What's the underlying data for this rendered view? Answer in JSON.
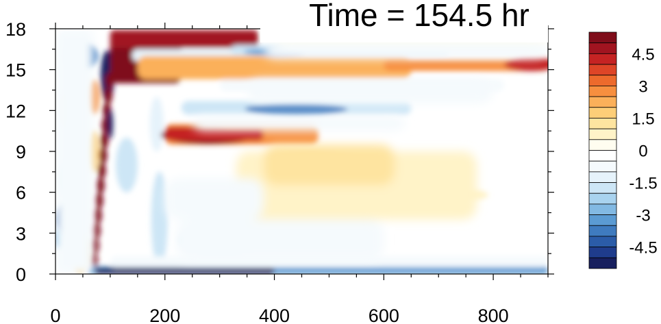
{
  "chart_data": {
    "type": "heatmap",
    "title": "Time = 154.5 hr",
    "xlabel": "",
    "ylabel": "",
    "xlim": [
      0,
      900
    ],
    "ylim": [
      0,
      18
    ],
    "x_ticks": [
      0,
      200,
      400,
      600,
      800
    ],
    "y_ticks": [
      0,
      3,
      6,
      9,
      12,
      15,
      18
    ],
    "x_tick_labels": [
      "0",
      "200",
      "400",
      "600",
      "800"
    ],
    "y_tick_labels": [
      "0",
      "3",
      "6",
      "9",
      "12",
      "15",
      "18"
    ],
    "colorbar": {
      "placement": "right",
      "levels": [
        -5.5,
        -5,
        -4.5,
        -4,
        -3.5,
        -3,
        -2.5,
        -2,
        -1.5,
        -1,
        -0.5,
        0,
        0.5,
        1,
        1.5,
        2,
        2.5,
        3,
        3.5,
        4,
        4.5,
        5,
        5.5
      ],
      "labels": [
        "4.5",
        "3",
        "1.5",
        "0",
        "-1.5",
        "-3",
        "-4.5"
      ],
      "label_values": [
        4.5,
        3,
        1.5,
        0,
        -1.5,
        -3,
        -4.5
      ],
      "colors": [
        "#171f5e",
        "#1f3c8c",
        "#2b5ca8",
        "#3f7bbf",
        "#5b9bd3",
        "#82b9e3",
        "#a9d3ef",
        "#cde6f6",
        "#e6f3fb",
        "#f5fafd",
        "#ffffff",
        "#fffdf0",
        "#fff3c8",
        "#fee4a0",
        "#fdce78",
        "#fbb05a",
        "#f78f3f",
        "#ed6a2c",
        "#de4527",
        "#c52323",
        "#a11420",
        "#7f0d1a"
      ]
    },
    "features": [
      {
        "kind": "positive",
        "x_range": [
          100,
          230
        ],
        "y_range": [
          14,
          17
        ],
        "value": 5.5
      },
      {
        "kind": "positive",
        "x_range": [
          150,
          650
        ],
        "y_range": [
          14.8,
          15.6
        ],
        "value": 4
      },
      {
        "kind": "positive",
        "x_range": [
          200,
          350
        ],
        "y_range": [
          9.6,
          10.9
        ],
        "value": 5
      },
      {
        "kind": "positive",
        "x_range": [
          100,
          370
        ],
        "y_range": [
          16.6,
          17.8
        ],
        "value": 4.5
      },
      {
        "kind": "negative",
        "x_range": [
          250,
          600
        ],
        "y_range": [
          11.6,
          12.6
        ],
        "value": -3.5
      },
      {
        "kind": "negative",
        "x_range": [
          50,
          900
        ],
        "y_range": [
          0,
          0.6
        ],
        "value": -4.5
      },
      {
        "kind": "positive",
        "x_range": [
          300,
          760
        ],
        "y_range": [
          4,
          9
        ],
        "value": 1
      }
    ]
  }
}
